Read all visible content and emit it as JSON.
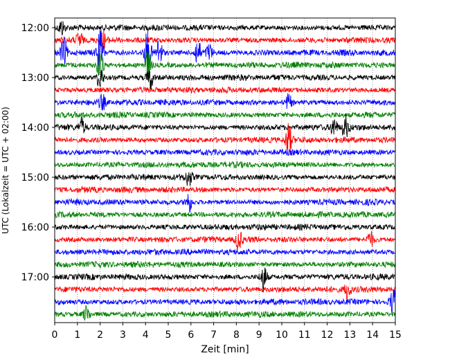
{
  "chart_data": {
    "type": "line",
    "title": "",
    "xlabel": "Zeit  [min]",
    "ylabel": "UTC (Lokalzeit = UTC + 02:00)",
    "xlim": [
      0,
      15
    ],
    "x_ticks": [
      "0",
      "1",
      "2",
      "3",
      "4",
      "5",
      "6",
      "7",
      "8",
      "9",
      "10",
      "11",
      "12",
      "13",
      "14",
      "15"
    ],
    "y_ticks": [
      "12:00",
      "13:00",
      "14:00",
      "15:00",
      "16:00",
      "17:00"
    ],
    "trace_interval_min": 15,
    "trace_count": 24,
    "trace_start": "12:00",
    "colors": [
      "#000000",
      "#ff0000",
      "#0000ff",
      "#008000"
    ],
    "grid": "vertical dotted lines at each minute",
    "events": [
      {
        "trace": 0,
        "x": 0.3,
        "amp": 1.2
      },
      {
        "trace": 1,
        "x": 1.1,
        "amp": 1.4
      },
      {
        "trace": 1,
        "x": 2.1,
        "amp": 1.6
      },
      {
        "trace": 2,
        "x": 0.4,
        "amp": 2.2
      },
      {
        "trace": 2,
        "x": 2.0,
        "amp": 3.5
      },
      {
        "trace": 2,
        "x": 4.1,
        "amp": 3.8
      },
      {
        "trace": 2,
        "x": 4.6,
        "amp": 2.4
      },
      {
        "trace": 2,
        "x": 6.3,
        "amp": 2.2
      },
      {
        "trace": 2,
        "x": 6.8,
        "amp": 1.4
      },
      {
        "trace": 3,
        "x": 2.0,
        "amp": 2.5
      },
      {
        "trace": 3,
        "x": 4.1,
        "amp": 2.8
      },
      {
        "trace": 4,
        "x": 2.0,
        "amp": 1.8
      },
      {
        "trace": 4,
        "x": 4.2,
        "amp": 1.8
      },
      {
        "trace": 6,
        "x": 2.1,
        "amp": 1.2
      },
      {
        "trace": 6,
        "x": 10.3,
        "amp": 1.2
      },
      {
        "trace": 8,
        "x": 1.2,
        "amp": 1.4
      },
      {
        "trace": 8,
        "x": 12.3,
        "amp": 1.6
      },
      {
        "trace": 8,
        "x": 12.8,
        "amp": 1.8
      },
      {
        "trace": 9,
        "x": 10.3,
        "amp": 2.6
      },
      {
        "trace": 12,
        "x": 5.9,
        "amp": 1.3
      },
      {
        "trace": 14,
        "x": 5.9,
        "amp": 1.6
      },
      {
        "trace": 17,
        "x": 8.1,
        "amp": 1.5
      },
      {
        "trace": 17,
        "x": 13.9,
        "amp": 1.3
      },
      {
        "trace": 20,
        "x": 9.2,
        "amp": 2.2
      },
      {
        "trace": 21,
        "x": 12.9,
        "amp": 1.5
      },
      {
        "trace": 22,
        "x": 14.9,
        "amp": 2.0
      },
      {
        "trace": 23,
        "x": 1.4,
        "amp": 1.3
      }
    ]
  }
}
